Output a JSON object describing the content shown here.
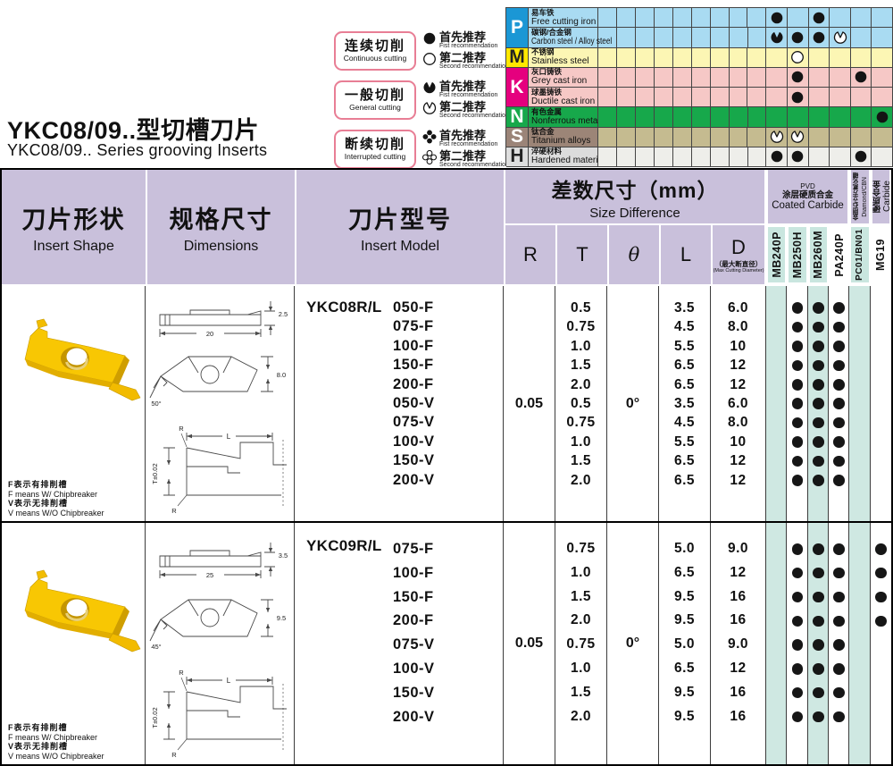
{
  "page": {
    "title_zh": "YKC08/09..型切槽刀片",
    "title_en": "YKC08/09.. Series grooving Inserts"
  },
  "legend": {
    "first_zh": "首先推荐",
    "first_en": "Fist recommendation",
    "second_zh": "第二推荐",
    "second_en": "Second recommendation",
    "items": [
      {
        "zh": "连续切削",
        "en": "Continuous cutting",
        "icon": "circle"
      },
      {
        "zh": "一般切削",
        "en": "General cutting",
        "icon": "pac"
      },
      {
        "zh": "断续切削",
        "en": "Interrupted cutting",
        "icon": "clover"
      }
    ]
  },
  "materials": {
    "groups": [
      {
        "letter": "P",
        "bg": "#1b97d5",
        "fg": "#ffffff",
        "rows": 2
      },
      {
        "letter": "M",
        "bg": "#ffe800",
        "fg": "#222222",
        "rows": 1
      },
      {
        "letter": "K",
        "bg": "#e5007e",
        "fg": "#ffffff",
        "rows": 2
      },
      {
        "letter": "N",
        "bg": "#17a84b",
        "fg": "#ffffff",
        "rows": 1
      },
      {
        "letter": "S",
        "bg": "#9b8478",
        "fg": "#ffffff",
        "rows": 1
      },
      {
        "letter": "H",
        "bg": "#dedede",
        "fg": "#222222",
        "rows": 1
      }
    ],
    "rows": [
      {
        "zh": "易车铁",
        "en": "Free cutting iron",
        "bg": "#a9dbf2",
        "name_bg": "#a9dbf2",
        "dots": [
          {
            "col": 0,
            "icon": "circle-solid"
          },
          {
            "col": 2,
            "icon": "circle-solid"
          }
        ]
      },
      {
        "zh": "碳钢/合金钢",
        "en": "Carbon steel / Alloy steel",
        "bg": "#a9dbf2",
        "name_bg": "#a9dbf2",
        "dots": [
          {
            "col": 0,
            "icon": "pac-solid"
          },
          {
            "col": 1,
            "icon": "circle-solid"
          },
          {
            "col": 2,
            "icon": "circle-solid"
          },
          {
            "col": 3,
            "icon": "pac-outline"
          }
        ]
      },
      {
        "zh": "不锈钢",
        "en": "Stainless steel",
        "bg": "#fcf6b4",
        "name_bg": "#fcf6b4",
        "dots": [
          {
            "col": 1,
            "icon": "circle-outline"
          }
        ]
      },
      {
        "zh": "灰口铸铁",
        "en": "Grey cast iron",
        "bg": "#f6c8c6",
        "name_bg": "#f6c8c6",
        "dots": [
          {
            "col": 1,
            "icon": "circle-solid"
          },
          {
            "col": 4,
            "icon": "circle-solid"
          }
        ]
      },
      {
        "zh": "球墨铸铁",
        "en": "Ductile cast iron",
        "bg": "#f6c8c6",
        "name_bg": "#f6c8c6",
        "dots": [
          {
            "col": 1,
            "icon": "circle-solid"
          }
        ]
      },
      {
        "zh": "有色金属",
        "en": "Nonferrous metals",
        "bg": "#17a84b",
        "name_bg": "#17a84b",
        "dots": [
          {
            "col": 5,
            "icon": "circle-solid"
          }
        ]
      },
      {
        "zh": "钛合金",
        "en": "Titanium alloys",
        "bg": "#c5bb90",
        "name_bg": "#9c8577",
        "dots": [
          {
            "col": 0,
            "icon": "pac-outline"
          },
          {
            "col": 1,
            "icon": "pac-outline"
          }
        ]
      },
      {
        "zh": "淬硬材料",
        "en": "Hardened materials",
        "bg": "#eeeeea",
        "name_bg": "#dcdcdc",
        "dots": [
          {
            "col": 0,
            "icon": "circle-solid"
          },
          {
            "col": 1,
            "icon": "circle-solid"
          },
          {
            "col": 4,
            "icon": "circle-solid"
          }
        ]
      }
    ]
  },
  "table": {
    "col1_zh": "刀片形状",
    "col1_en": "Insert Shape",
    "col2_zh": "规格尺寸",
    "col2_en": "Dimensions",
    "col3_zh": "刀片型号",
    "col3_en": "Insert Model",
    "size_zh": "差数尺寸（mm）",
    "size_en": "Size Difference",
    "dims": [
      "R",
      "T",
      "θ",
      "L",
      "D"
    ],
    "d_note_zh": "（最大断直径）",
    "d_note_en": "(Max Cutting Diameter)",
    "coated_pvd": "PVD",
    "coated_zh": "涂层硬质合金",
    "coated_en": "Coated Carbide",
    "diamond_zh": "金刚石/立方氮化硼",
    "diamond_en": "Diamond/CBN",
    "carbide_zh": "硬质合金",
    "carbide_en": "Carbide",
    "grades": [
      {
        "label": "MB240P",
        "label_teal": true,
        "stripe_teal": true
      },
      {
        "label": "MB250H",
        "label_teal": true,
        "stripe_teal": false
      },
      {
        "label": "MB260M",
        "label_teal": true,
        "stripe_teal": true
      },
      {
        "label": "PA240P",
        "label_teal": false,
        "stripe_teal": false
      },
      {
        "label": "PC01/BN01",
        "label_teal": true,
        "stripe_teal": true
      },
      {
        "label": "MG19",
        "label_teal": false,
        "stripe_teal": false
      }
    ],
    "blocks": [
      {
        "prefix": "YKC08R/L",
        "R": "0.05",
        "theta": "0°",
        "rows": [
          {
            "m": "050-F",
            "T": "0.5",
            "L": "3.5",
            "D": "6.0",
            "dots": [
              1,
              2,
              3
            ]
          },
          {
            "m": "075-F",
            "T": "0.75",
            "L": "4.5",
            "D": "8.0",
            "dots": [
              1,
              2,
              3
            ]
          },
          {
            "m": "100-F",
            "T": "1.0",
            "L": "5.5",
            "D": "10",
            "dots": [
              1,
              2,
              3
            ]
          },
          {
            "m": "150-F",
            "T": "1.5",
            "L": "6.5",
            "D": "12",
            "dots": [
              1,
              2,
              3
            ]
          },
          {
            "m": "200-F",
            "T": "2.0",
            "L": "6.5",
            "D": "12",
            "dots": [
              1,
              2,
              3
            ]
          },
          {
            "m": "050-V",
            "T": "0.5",
            "L": "3.5",
            "D": "6.0",
            "dots": [
              1,
              2,
              3
            ]
          },
          {
            "m": "075-V",
            "T": "0.75",
            "L": "4.5",
            "D": "8.0",
            "dots": [
              1,
              2,
              3
            ]
          },
          {
            "m": "100-V",
            "T": "1.0",
            "L": "5.5",
            "D": "10",
            "dots": [
              1,
              2,
              3
            ]
          },
          {
            "m": "150-V",
            "T": "1.5",
            "L": "6.5",
            "D": "12",
            "dots": [
              1,
              2,
              3
            ]
          },
          {
            "m": "200-V",
            "T": "2.0",
            "L": "6.5",
            "D": "12",
            "dots": [
              1,
              2,
              3
            ]
          }
        ],
        "drawing": {
          "thickness": "2.5",
          "length": "20",
          "width": "8.0",
          "angle": "50°",
          "t_tol": "T±0.02",
          "l_label": "L",
          "r_label": "R"
        },
        "footnote": [
          "F表示有排削槽",
          "F means W/ Chipbreaker",
          "V表示无排削槽",
          "V means W/O Chipbreaker"
        ]
      },
      {
        "prefix": "YKC09R/L",
        "R": "0.05",
        "theta": "0°",
        "rows": [
          {
            "m": "075-F",
            "T": "0.75",
            "L": "5.0",
            "D": "9.0",
            "dots": [
              1,
              2,
              3,
              5
            ]
          },
          {
            "m": "100-F",
            "T": "1.0",
            "L": "6.5",
            "D": "12",
            "dots": [
              1,
              2,
              3,
              5
            ]
          },
          {
            "m": "150-F",
            "T": "1.5",
            "L": "9.5",
            "D": "16",
            "dots": [
              1,
              2,
              3,
              5
            ]
          },
          {
            "m": "200-F",
            "T": "2.0",
            "L": "9.5",
            "D": "16",
            "dots": [
              1,
              2,
              3,
              5
            ]
          },
          {
            "m": "075-V",
            "T": "0.75",
            "L": "5.0",
            "D": "9.0",
            "dots": [
              1,
              2,
              3
            ]
          },
          {
            "m": "100-V",
            "T": "1.0",
            "L": "6.5",
            "D": "12",
            "dots": [
              1,
              2,
              3
            ]
          },
          {
            "m": "150-V",
            "T": "1.5",
            "L": "9.5",
            "D": "16",
            "dots": [
              1,
              2,
              3
            ]
          },
          {
            "m": "200-V",
            "T": "2.0",
            "L": "9.5",
            "D": "16",
            "dots": [
              1,
              2,
              3
            ]
          }
        ],
        "drawing": {
          "thickness": "3.5",
          "length": "25",
          "width": "9.5",
          "angle": "45°",
          "t_tol": "T±0.02",
          "l_label": "L",
          "r_label": "R"
        },
        "footnote": [
          "F表示有排削槽",
          "F means W/ Chipbreaker",
          "V表示无排削槽",
          "V means W/O Chipbreaker"
        ]
      }
    ]
  }
}
